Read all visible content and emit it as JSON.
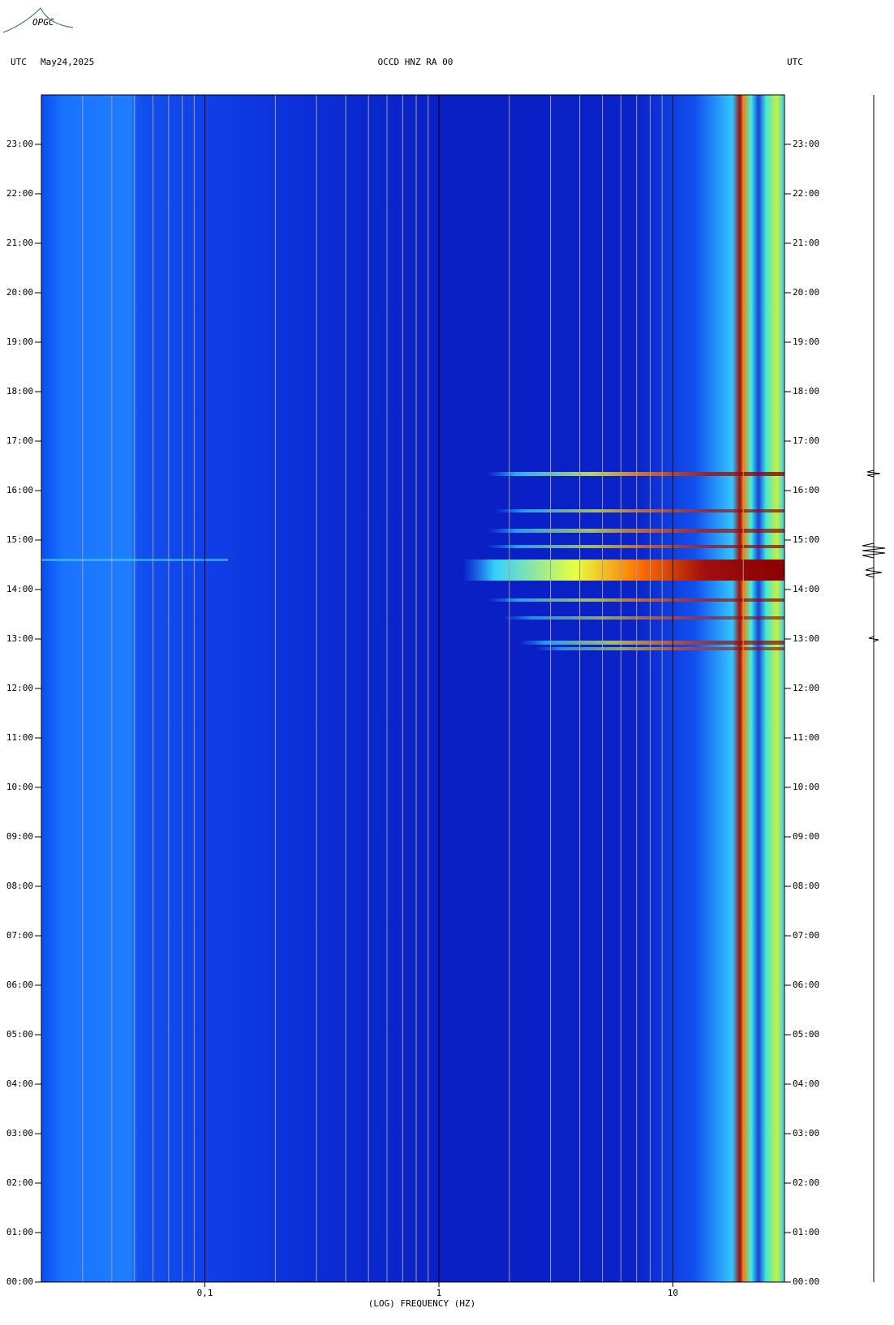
{
  "logo": "OPGC",
  "chart_data": {
    "type": "spectrogram",
    "title": "OCCD HNZ RA 00",
    "date": "May24,2025",
    "left_label": "UTC",
    "right_label": "UTC",
    "x_label": "(LOG) FREQUENCY (HZ)",
    "xlim": [
      0.02,
      30
    ],
    "x_log": true,
    "xticks": [
      {
        "value": 0.1,
        "label": "0,1"
      },
      1,
      10
    ],
    "x_minor_ticks": [
      0.03,
      0.04,
      0.05,
      0.06,
      0.07,
      0.08,
      0.09,
      0.2,
      0.3,
      0.4,
      0.5,
      0.6,
      0.7,
      0.8,
      0.9,
      2,
      3,
      4,
      5,
      6,
      7,
      8,
      9,
      20
    ],
    "ylim": [
      0,
      24
    ],
    "yticks": [
      {
        "value": 0,
        "label": "00:00"
      },
      {
        "value": 1,
        "label": "01:00"
      },
      {
        "value": 2,
        "label": "02:00"
      },
      {
        "value": 3,
        "label": "03:00"
      },
      {
        "value": 4,
        "label": "04:00"
      },
      {
        "value": 5,
        "label": "05:00"
      },
      {
        "value": 6,
        "label": "06:00"
      },
      {
        "value": 7,
        "label": "07:00"
      },
      {
        "value": 8,
        "label": "08:00"
      },
      {
        "value": 9,
        "label": "09:00"
      },
      {
        "value": 10,
        "label": "10:00"
      },
      {
        "value": 11,
        "label": "11:00"
      },
      {
        "value": 12,
        "label": "12:00"
      },
      {
        "value": 13,
        "label": "13:00"
      },
      {
        "value": 14,
        "label": "14:00"
      },
      {
        "value": 15,
        "label": "15:00"
      },
      {
        "value": 16,
        "label": "16:00"
      },
      {
        "value": 17,
        "label": "17:00"
      },
      {
        "value": 18,
        "label": "18:00"
      },
      {
        "value": 19,
        "label": "19:00"
      },
      {
        "value": 20,
        "label": "20:00"
      },
      {
        "value": 21,
        "label": "21:00"
      },
      {
        "value": 22,
        "label": "22:00"
      },
      {
        "value": 23,
        "label": "23:00"
      }
    ]
  }
}
